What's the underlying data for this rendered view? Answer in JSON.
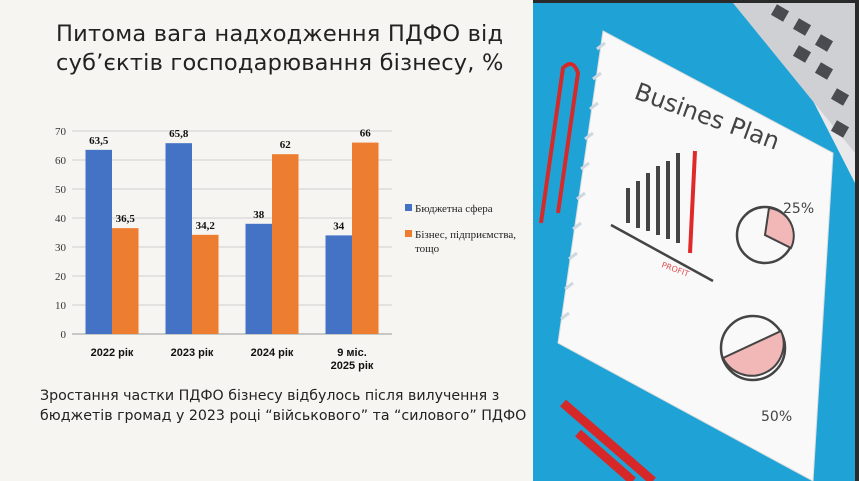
{
  "title": "Питома вага надходження ПДФО від суб’єктів господарювання бізнесу, %",
  "caption": "Зростання частки ПДФО бізнесу відбулось після вилучення з бюджетів громад у 2023 році “військового” та “силового” ПДФО",
  "photo": {
    "heading": "Busines Plan",
    "profit_label": "PROFIT",
    "pie1_label": "25%",
    "pie2_label": "50%"
  },
  "chart_data": {
    "type": "bar",
    "categories": [
      [
        "2022 рік"
      ],
      [
        "2023 рік"
      ],
      [
        "2024 рік"
      ],
      [
        "9 міс.",
        "2025 рік"
      ]
    ],
    "series": [
      {
        "name": "Бюджетна  сфера",
        "values": [
          63.5,
          65.8,
          38,
          34
        ],
        "labels": [
          "63,5",
          "65,8",
          "38",
          "34"
        ],
        "color": "#4472c4"
      },
      {
        "name": "Бізнес, підприємства, тощо",
        "name_lines": [
          "Бізнес, підприємства,",
          "тощо"
        ],
        "values": [
          36.5,
          34.2,
          62,
          66
        ],
        "labels": [
          "36,5",
          "34,2",
          "62",
          "66"
        ],
        "color": "#ed7d31"
      }
    ],
    "ylim": [
      0,
      70
    ],
    "yticks": [
      0,
      10,
      20,
      30,
      40,
      50,
      60,
      70
    ],
    "grid": true,
    "legend": "right"
  }
}
